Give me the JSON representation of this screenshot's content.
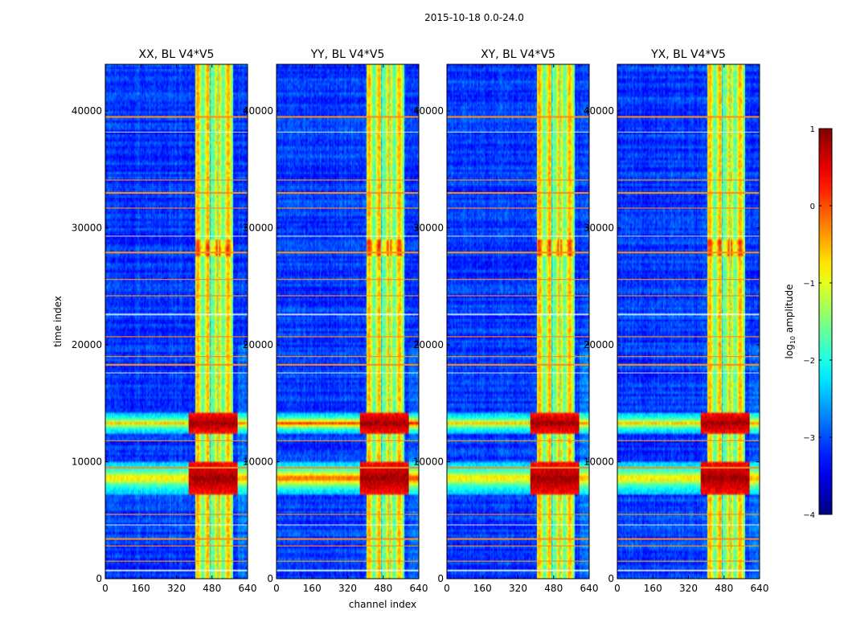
{
  "figure": {
    "suptitle": "2015-10-18 0.0-24.0"
  },
  "chart_data": {
    "type": "heatmap",
    "xlabel": "channel index",
    "ylabel": "time index",
    "xlim": [
      0,
      640
    ],
    "ylim": [
      0,
      44000
    ],
    "xticks": [
      0,
      160,
      320,
      480,
      640
    ],
    "yticks": [
      0,
      10000,
      20000,
      30000,
      40000
    ],
    "panels": [
      {
        "title": "XX, BL V4*V5",
        "pol": "XX"
      },
      {
        "title": "YY, BL V4*V5",
        "pol": "YY"
      },
      {
        "title": "XY, BL V4*V5",
        "pol": "XY"
      },
      {
        "title": "YX, BL V4*V5",
        "pol": "YX"
      }
    ],
    "colormap": "jet",
    "colorbar": {
      "label_main": "log",
      "label_sub": "10",
      "label_rest": " amplitude",
      "range": [
        -4,
        1
      ],
      "ticks": [
        1,
        0,
        -1,
        -2,
        -3,
        -4
      ],
      "tick_labels": [
        "1",
        "0",
        "−1",
        "−2",
        "−3",
        "−4"
      ]
    },
    "bright_channel_band": [
      405,
      575
    ],
    "strong_time_bands": [
      {
        "center": 8600,
        "halfwidth": 1500,
        "level": 0.85
      },
      {
        "center": 13300,
        "halfwidth": 900,
        "level": 0.85
      }
    ],
    "rfi_time_rows": [
      39500,
      38200,
      34100,
      33000,
      31700,
      29300,
      27900,
      25600,
      24200,
      22600,
      20700,
      19000,
      18300,
      17600,
      11800,
      9500,
      5500,
      4600,
      3400,
      2800,
      1500,
      700
    ]
  }
}
